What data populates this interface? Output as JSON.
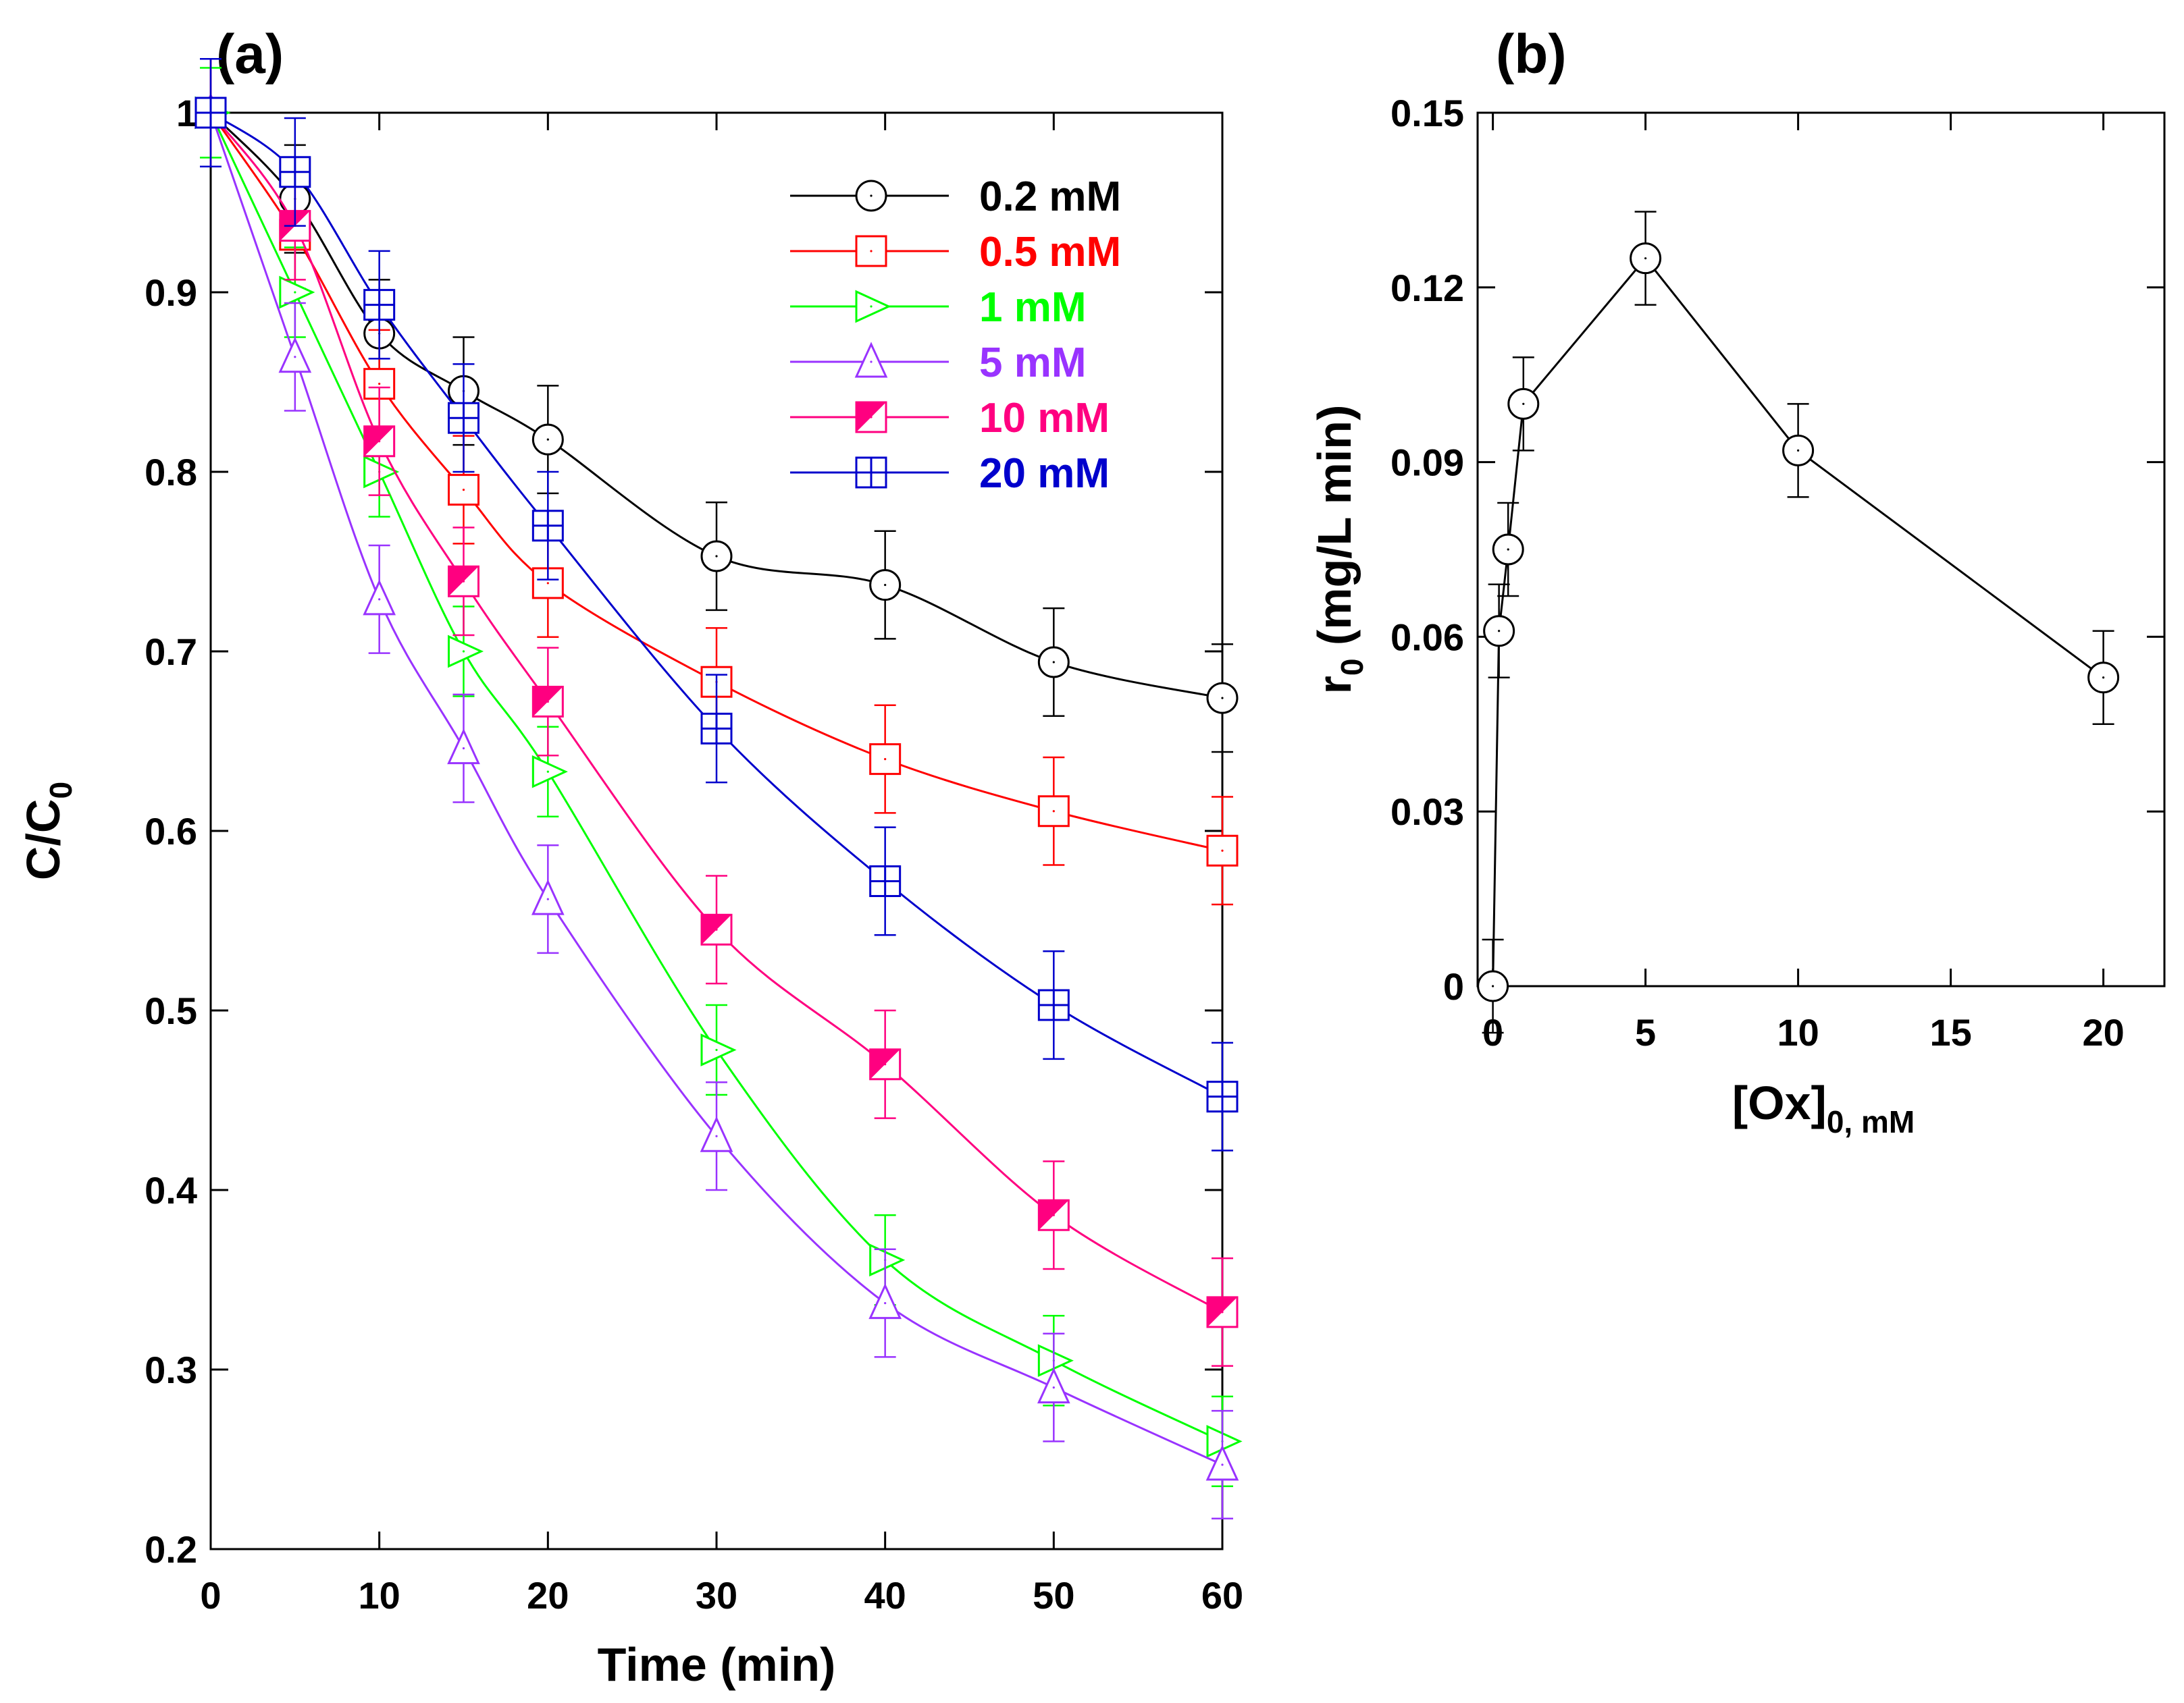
{
  "chart_data": [
    {
      "type": "line",
      "panel_label": "(a)",
      "xlabel": "Time (min)",
      "ylabel": "C/C",
      "ylabel_sub": "0",
      "xlim": [
        0,
        60
      ],
      "ylim": [
        0.2,
        1
      ],
      "xticks": [
        "0",
        "10",
        "20",
        "30",
        "40",
        "50",
        "60"
      ],
      "yticks": [
        "0.2",
        "0.3",
        "0.4",
        "0.5",
        "0.6",
        "0.7",
        "0.8",
        "0.9",
        "1"
      ],
      "legend_position": "top-right",
      "x": [
        0,
        5,
        10,
        15,
        20,
        30,
        40,
        50,
        60
      ],
      "series": [
        {
          "name": "0.2 mM",
          "color": "#000000",
          "marker": "circle",
          "values": [
            1.0,
            0.952,
            0.877,
            0.845,
            0.818,
            0.753,
            0.737,
            0.694,
            0.674
          ],
          "error": [
            0.03,
            0.03,
            0.03,
            0.03,
            0.03,
            0.03,
            0.03,
            0.03,
            0.03
          ]
        },
        {
          "name": "0.5 mM",
          "color": "#ff0000",
          "marker": "square",
          "values": [
            1.0,
            0.932,
            0.849,
            0.79,
            0.738,
            0.683,
            0.64,
            0.611,
            0.589
          ],
          "error": [
            0.03,
            0.03,
            0.03,
            0.03,
            0.03,
            0.03,
            0.03,
            0.03,
            0.03
          ]
        },
        {
          "name": "1 mM",
          "color": "#00ff00",
          "marker": "triangle-right",
          "values": [
            1.0,
            0.9,
            0.8,
            0.7,
            0.633,
            0.478,
            0.361,
            0.305,
            0.26
          ],
          "error": [
            0.025,
            0.025,
            0.025,
            0.025,
            0.025,
            0.025,
            0.025,
            0.025,
            0.025
          ]
        },
        {
          "name": "5 mM",
          "color": "#9933ff",
          "marker": "triangle-up",
          "values": [
            1.0,
            0.864,
            0.729,
            0.646,
            0.562,
            0.43,
            0.337,
            0.29,
            0.247
          ],
          "error": [
            0.03,
            0.03,
            0.03,
            0.03,
            0.03,
            0.03,
            0.03,
            0.03,
            0.03
          ]
        },
        {
          "name": "10 mM",
          "color": "#ff0080",
          "marker": "half-square",
          "values": [
            1.0,
            0.937,
            0.817,
            0.739,
            0.672,
            0.545,
            0.47,
            0.386,
            0.332
          ],
          "error": [
            0.03,
            0.03,
            0.03,
            0.03,
            0.03,
            0.03,
            0.03,
            0.03,
            0.03
          ]
        },
        {
          "name": "20 mM",
          "color": "#0000cc",
          "marker": "crossed-square",
          "values": [
            1.0,
            0.967,
            0.893,
            0.83,
            0.77,
            0.657,
            0.572,
            0.503,
            0.452
          ],
          "error": [
            0.03,
            0.03,
            0.03,
            0.03,
            0.03,
            0.03,
            0.03,
            0.03,
            0.03
          ]
        }
      ]
    },
    {
      "type": "line",
      "panel_label": "(b)",
      "xlabel": "[Ox]",
      "xlabel_sub": "0, mM",
      "ylabel": "r",
      "ylabel_sub": "0",
      "ylabel_rest": " (mg/L min)",
      "xlim": [
        -0.5,
        22
      ],
      "ylim": [
        0,
        0.15
      ],
      "xticks": [
        "0",
        "5",
        "10",
        "15",
        "20"
      ],
      "yticks": [
        "0",
        "0.03",
        "0.06",
        "0.09",
        "0.12",
        "0.15"
      ],
      "series": [
        {
          "name": "r0",
          "color": "#000000",
          "marker": "circle",
          "x": [
            0,
            0.2,
            0.5,
            1,
            5,
            10,
            20
          ],
          "values": [
            0,
            0.061,
            0.075,
            0.1,
            0.125,
            0.092,
            0.053
          ],
          "error": [
            0.008,
            0.008,
            0.008,
            0.008,
            0.008,
            0.008,
            0.008
          ]
        }
      ]
    }
  ]
}
